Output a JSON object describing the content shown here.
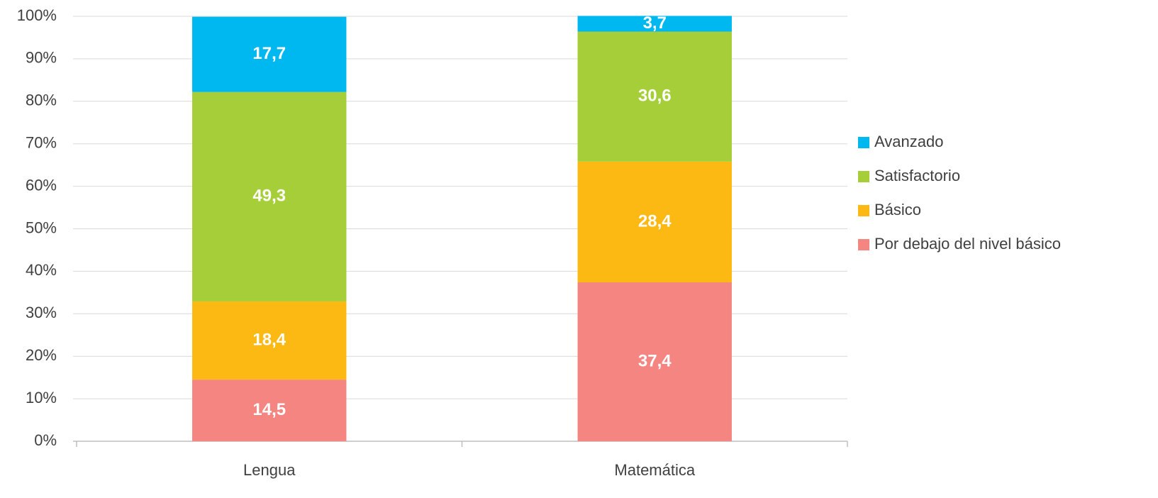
{
  "chart_data": {
    "type": "stacked_bar",
    "categories": [
      "Lengua",
      "Matemática"
    ],
    "series": [
      {
        "name": "Por debajo del nivel básico",
        "color": "#f48580",
        "values": [
          14.5,
          37.4
        ],
        "value_labels": [
          "14,5",
          "37,4"
        ]
      },
      {
        "name": "Básico",
        "color": "#fcb813",
        "values": [
          18.4,
          28.4
        ],
        "value_labels": [
          "18,4",
          "28,4"
        ]
      },
      {
        "name": "Satisfactorio",
        "color": "#a6ce39",
        "values": [
          49.3,
          30.6
        ],
        "value_labels": [
          "49,3",
          "30,6"
        ]
      },
      {
        "name": "Avanzado",
        "color": "#00b8f0",
        "values": [
          17.7,
          3.7
        ],
        "value_labels": [
          "17,7",
          "3,7"
        ]
      }
    ],
    "ylim": [
      0,
      100
    ],
    "yticks": [
      {
        "value": 0,
        "label": "0%"
      },
      {
        "value": 10,
        "label": "10%"
      },
      {
        "value": 20,
        "label": "20%"
      },
      {
        "value": 30,
        "label": "30%"
      },
      {
        "value": 40,
        "label": "40%"
      },
      {
        "value": 50,
        "label": "50%"
      },
      {
        "value": 60,
        "label": "60%"
      },
      {
        "value": 70,
        "label": "70%"
      },
      {
        "value": 80,
        "label": "80%"
      },
      {
        "value": 90,
        "label": "90%"
      },
      {
        "value": 100,
        "label": "100%"
      }
    ],
    "grid": true,
    "legend": "right"
  }
}
